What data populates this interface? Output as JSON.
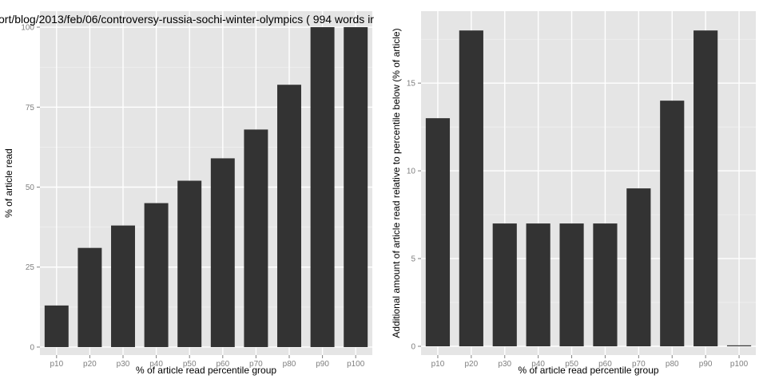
{
  "colors": {
    "panel_background": "#e5e5e5",
    "gridline": "#ffffff",
    "bar_fill": "#333333",
    "tick_text": "#7f7f7f"
  },
  "chart_data": [
    {
      "type": "bar",
      "title": "ort/blog/2013/feb/06/controversy-russia-sochi-winter-olympics ( 994 words ir",
      "xlabel": "% of article read percentile group",
      "ylabel": "% of article read",
      "categories": [
        "p10",
        "p20",
        "p30",
        "p40",
        "p50",
        "p60",
        "p70",
        "p80",
        "p90",
        "p100"
      ],
      "values": [
        13,
        31,
        38,
        45,
        52,
        59,
        68,
        82,
        100,
        100
      ],
      "ylim": [
        -2.5,
        105
      ],
      "yticks": [
        0,
        25,
        50,
        75,
        100
      ],
      "ytick_labels": [
        "0",
        "25",
        "50",
        "75",
        "100"
      ],
      "grid": true,
      "legend": "none"
    },
    {
      "type": "bar",
      "title": "",
      "xlabel": "% of article read percentile group",
      "ylabel": "Additional amount of article read relative to percentile below (% of article)",
      "categories": [
        "p10",
        "p20",
        "p30",
        "p40",
        "p50",
        "p60",
        "p70",
        "p80",
        "p90",
        "p100"
      ],
      "values": [
        13,
        18,
        7,
        7,
        7,
        7,
        9,
        14,
        18,
        0
      ],
      "ylim": [
        -0.5,
        19.1
      ],
      "yticks": [
        0,
        5,
        10,
        15
      ],
      "ytick_labels": [
        "0",
        "5",
        "10",
        "15"
      ],
      "grid": true,
      "legend": "none"
    }
  ]
}
